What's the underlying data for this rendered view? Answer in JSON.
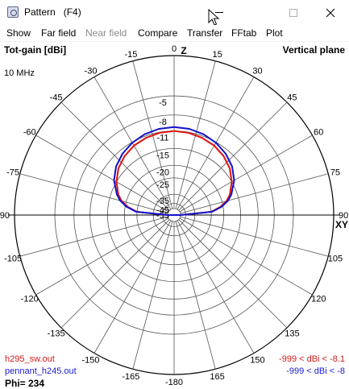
{
  "window": {
    "title": "Pattern   (F4)",
    "icons": {
      "app": "pattern-app-icon",
      "minimize": "minimize-icon",
      "maximize": "maximize-icon",
      "close": "close-icon",
      "cursor": "mouse-cursor-icon"
    }
  },
  "menu": {
    "items": [
      {
        "label": "Show",
        "enabled": true
      },
      {
        "label": "Far field",
        "enabled": true
      },
      {
        "label": "Near field",
        "enabled": false
      },
      {
        "label": "Compare",
        "enabled": true
      },
      {
        "label": "Transfer",
        "enabled": true
      },
      {
        "label": "FFtab",
        "enabled": true
      },
      {
        "label": "Plot",
        "enabled": true
      }
    ]
  },
  "plot": {
    "gain_label": "Tot-gain [dBi]",
    "plane_label": "Vertical plane",
    "frequency": "10 MHz",
    "z_label": "Z",
    "xy_label": "XY",
    "angle_labels": [
      "0",
      "15",
      "30",
      "45",
      "60",
      "75",
      "90",
      "105",
      "120",
      "135",
      "150",
      "165",
      "-180",
      "-165",
      "-150",
      "-135",
      "-120",
      "-105",
      "-90",
      "-75",
      "-60",
      "-45",
      "-30",
      "-15"
    ],
    "gain_labels": [
      "-5",
      "-8",
      "-11",
      "-15",
      "-20",
      "-25",
      "-35",
      "-45",
      "-55"
    ],
    "phi": "Phi= 234",
    "traces": [
      {
        "file": "h295_sw.out",
        "range": "-999 < dBi < -8.1",
        "color": "#dd1111"
      },
      {
        "file": "pennant_h245.out",
        "range": "-999 < dBi < -8",
        "color": "#1111cc"
      }
    ]
  },
  "chart_data": {
    "type": "polar",
    "title": "Tot-gain [dBi]",
    "subtitle": "Vertical plane",
    "angle_ticks_deg": [
      0,
      15,
      30,
      45,
      60,
      75,
      90,
      105,
      120,
      135,
      150,
      165,
      180,
      -165,
      -150,
      -135,
      -120,
      -105,
      -90,
      -75,
      -60,
      -45,
      -30,
      -15
    ],
    "gain_rings_dBi": [
      -5,
      -8,
      -11,
      -15,
      -20,
      -25,
      -35,
      -45,
      -55
    ],
    "series": [
      {
        "name": "h295_sw.out",
        "angles_deg": [
          -90,
          -85,
          -80,
          -75,
          -70,
          -60,
          -50,
          -40,
          -30,
          -20,
          -10,
          0,
          10,
          20,
          30,
          40,
          50,
          60,
          70,
          75,
          80,
          85,
          90
        ],
        "gain_dBi": [
          -55,
          -25,
          -21,
          -18.5,
          -17,
          -15,
          -13.5,
          -12.5,
          -11.8,
          -11.4,
          -11.1,
          -11,
          -11.1,
          -11.4,
          -11.8,
          -12.5,
          -13.5,
          -15,
          -17,
          -18.5,
          -21,
          -25,
          -55
        ]
      },
      {
        "name": "pennant_h245.out",
        "angles_deg": [
          -90,
          -85,
          -80,
          -75,
          -70,
          -60,
          -50,
          -40,
          -30,
          -20,
          -10,
          0,
          10,
          20,
          30,
          40,
          50,
          60,
          70,
          75,
          80,
          85,
          90
        ],
        "gain_dBi": [
          -55,
          -24.5,
          -20.5,
          -18,
          -16.5,
          -14.3,
          -12.8,
          -11.8,
          -11.1,
          -10.6,
          -10.3,
          -10.2,
          -10.3,
          -10.6,
          -11.1,
          -11.8,
          -12.8,
          -14.3,
          -16.5,
          -18,
          -20.5,
          -24.5,
          -55
        ]
      }
    ]
  }
}
